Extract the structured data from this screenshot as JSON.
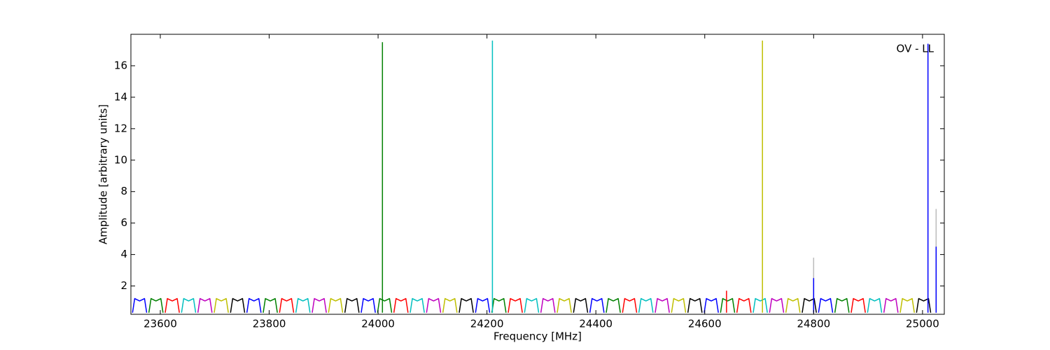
{
  "chart_data": {
    "type": "line",
    "annotation": "OV - LL",
    "xlabel": "Frequency [MHz]",
    "ylabel": "Amplitude [arbitrary units]",
    "xlim": [
      23546,
      25040
    ],
    "xticks": [
      23600,
      23800,
      24000,
      24200,
      24400,
      24600,
      24800,
      25000
    ],
    "ylim": [
      0.2,
      18
    ],
    "yticks": [
      2,
      4,
      6,
      8,
      10,
      12,
      14,
      16
    ],
    "grid": false,
    "series": [
      {
        "color": "#bbbbbb",
        "x": [
          24800,
          24800,
          null,
          25025,
          25025
        ],
        "values": [
          0.3,
          3.8,
          null,
          0.3,
          6.9
        ]
      },
      {
        "color": "#0000ff",
        "x": [
          23549,
          23553,
          23562,
          23571,
          23575,
          null,
          23759,
          23763,
          23772,
          23781,
          23785,
          null,
          23969,
          23973,
          23982,
          23991,
          23995,
          null,
          24179,
          24183,
          24192,
          24201,
          24205,
          null,
          24389,
          24393,
          24402,
          24411,
          24415,
          null,
          24599,
          24603,
          24612,
          24621,
          24625,
          null,
          24809,
          24813,
          24822,
          24831,
          24835
        ],
        "values": [
          0.3,
          1.2,
          1.05,
          1.2,
          0.3,
          null,
          0.3,
          1.2,
          1.05,
          1.2,
          0.3,
          null,
          0.3,
          1.2,
          1.05,
          1.2,
          0.3,
          null,
          0.3,
          1.2,
          1.05,
          1.2,
          0.3,
          null,
          0.3,
          1.2,
          1.05,
          1.2,
          0.3,
          null,
          0.3,
          1.2,
          1.05,
          1.2,
          0.3,
          null,
          0.3,
          1.2,
          1.05,
          1.2,
          0.3
        ]
      },
      {
        "color": "#008000",
        "x": [
          23579,
          23583,
          23592,
          23601,
          23605,
          null,
          23789,
          23793,
          23802,
          23811,
          23815,
          null,
          23999,
          24003,
          24012,
          24021,
          24025,
          null,
          24209,
          24213,
          24222,
          24231,
          24235,
          null,
          24419,
          24423,
          24432,
          24441,
          24445,
          null,
          24629,
          24633,
          24642,
          24651,
          24655,
          null,
          24839,
          24843,
          24852,
          24861,
          24865
        ],
        "values": [
          0.3,
          1.2,
          1.05,
          1.2,
          0.3,
          null,
          0.3,
          1.2,
          1.05,
          1.2,
          0.3,
          null,
          0.3,
          1.2,
          1.05,
          1.2,
          0.3,
          null,
          0.3,
          1.2,
          1.05,
          1.2,
          0.3,
          null,
          0.3,
          1.2,
          1.05,
          1.2,
          0.3,
          null,
          0.3,
          1.2,
          1.05,
          1.2,
          0.3,
          null,
          0.3,
          1.2,
          1.05,
          1.2,
          0.3
        ]
      },
      {
        "color": "#ff0000",
        "x": [
          23609,
          23613,
          23622,
          23631,
          23635,
          null,
          23819,
          23823,
          23832,
          23841,
          23845,
          null,
          24029,
          24033,
          24042,
          24051,
          24055,
          null,
          24239,
          24243,
          24252,
          24261,
          24265,
          null,
          24449,
          24453,
          24462,
          24471,
          24475,
          null,
          24659,
          24663,
          24672,
          24681,
          24685,
          null,
          24869,
          24873,
          24882,
          24891,
          24895
        ],
        "values": [
          0.3,
          1.2,
          1.05,
          1.2,
          0.3,
          null,
          0.3,
          1.2,
          1.05,
          1.2,
          0.3,
          null,
          0.3,
          1.2,
          1.05,
          1.2,
          0.3,
          null,
          0.3,
          1.2,
          1.05,
          1.2,
          0.3,
          null,
          0.3,
          1.2,
          1.05,
          1.2,
          0.3,
          null,
          0.3,
          1.2,
          1.05,
          1.2,
          0.3,
          null,
          0.3,
          1.2,
          1.05,
          1.2,
          0.3
        ]
      },
      {
        "color": "#00bfbf",
        "x": [
          23639,
          23643,
          23652,
          23661,
          23665,
          null,
          23849,
          23853,
          23862,
          23871,
          23875,
          null,
          24059,
          24063,
          24072,
          24081,
          24085,
          null,
          24269,
          24273,
          24282,
          24291,
          24295,
          null,
          24479,
          24483,
          24492,
          24501,
          24505,
          null,
          24689,
          24693,
          24702,
          24711,
          24715,
          null,
          24899,
          24903,
          24912,
          24921,
          24925
        ],
        "values": [
          0.3,
          1.2,
          1.05,
          1.2,
          0.3,
          null,
          0.3,
          1.2,
          1.05,
          1.2,
          0.3,
          null,
          0.3,
          1.2,
          1.05,
          1.2,
          0.3,
          null,
          0.3,
          1.2,
          1.05,
          1.2,
          0.3,
          null,
          0.3,
          1.2,
          1.05,
          1.2,
          0.3,
          null,
          0.3,
          1.2,
          1.05,
          1.2,
          0.3,
          null,
          0.3,
          1.2,
          1.05,
          1.2,
          0.3
        ]
      },
      {
        "color": "#bf00bf",
        "x": [
          23669,
          23673,
          23682,
          23691,
          23695,
          null,
          23879,
          23883,
          23892,
          23901,
          23905,
          null,
          24089,
          24093,
          24102,
          24111,
          24115,
          null,
          24299,
          24303,
          24312,
          24321,
          24325,
          null,
          24509,
          24513,
          24522,
          24531,
          24535,
          null,
          24719,
          24723,
          24732,
          24741,
          24745,
          null,
          24929,
          24933,
          24942,
          24951,
          24955
        ],
        "values": [
          0.3,
          1.2,
          1.05,
          1.2,
          0.3,
          null,
          0.3,
          1.2,
          1.05,
          1.2,
          0.3,
          null,
          0.3,
          1.2,
          1.05,
          1.2,
          0.3,
          null,
          0.3,
          1.2,
          1.05,
          1.2,
          0.3,
          null,
          0.3,
          1.2,
          1.05,
          1.2,
          0.3,
          null,
          0.3,
          1.2,
          1.05,
          1.2,
          0.3,
          null,
          0.3,
          1.2,
          1.05,
          1.2,
          0.3
        ]
      },
      {
        "color": "#bfbf00",
        "x": [
          23699,
          23703,
          23712,
          23721,
          23725,
          null,
          23909,
          23913,
          23922,
          23931,
          23935,
          null,
          24119,
          24123,
          24132,
          24141,
          24145,
          null,
          24329,
          24333,
          24342,
          24351,
          24355,
          null,
          24539,
          24543,
          24552,
          24561,
          24565,
          null,
          24749,
          24753,
          24762,
          24771,
          24775,
          null,
          24959,
          24963,
          24972,
          24981,
          24985
        ],
        "values": [
          0.3,
          1.2,
          1.05,
          1.2,
          0.3,
          null,
          0.3,
          1.2,
          1.05,
          1.2,
          0.3,
          null,
          0.3,
          1.2,
          1.05,
          1.2,
          0.3,
          null,
          0.3,
          1.2,
          1.05,
          1.2,
          0.3,
          null,
          0.3,
          1.2,
          1.05,
          1.2,
          0.3,
          null,
          0.3,
          1.2,
          1.05,
          1.2,
          0.3,
          null,
          0.3,
          1.2,
          1.05,
          1.2,
          0.3
        ]
      },
      {
        "color": "#000000",
        "x": [
          23729,
          23733,
          23742,
          23751,
          23755,
          null,
          23939,
          23943,
          23952,
          23961,
          23965,
          null,
          24149,
          24153,
          24162,
          24171,
          24175,
          null,
          24359,
          24363,
          24372,
          24381,
          24385,
          null,
          24569,
          24573,
          24582,
          24591,
          24595,
          null,
          24779,
          24783,
          24792,
          24801,
          24805,
          null,
          24989,
          24993,
          25002,
          25011,
          25015
        ],
        "values": [
          0.3,
          1.2,
          1.05,
          1.2,
          0.3,
          null,
          0.3,
          1.2,
          1.05,
          1.2,
          0.3,
          null,
          0.3,
          1.2,
          1.05,
          1.2,
          0.3,
          null,
          0.3,
          1.2,
          1.05,
          1.2,
          0.3,
          null,
          0.3,
          1.2,
          1.05,
          1.2,
          0.3,
          null,
          0.3,
          1.2,
          1.05,
          1.2,
          0.3,
          null,
          0.3,
          1.2,
          1.05,
          1.2,
          0.3
        ]
      },
      {
        "color": "#ff0000",
        "x": [
          24640,
          24640
        ],
        "values": [
          0.3,
          1.7
        ]
      },
      {
        "color": "#008000",
        "x": [
          24008,
          24008
        ],
        "values": [
          0.3,
          17.5
        ]
      },
      {
        "color": "#00bfbf",
        "x": [
          24210,
          24210
        ],
        "values": [
          0.3,
          17.6
        ]
      },
      {
        "color": "#bfbf00",
        "x": [
          24706,
          24706
        ],
        "values": [
          0.3,
          17.6
        ]
      },
      {
        "color": "#0000ff",
        "x": [
          24800,
          24800,
          null,
          25010,
          25010,
          null,
          25025,
          25025
        ],
        "values": [
          0.3,
          2.5,
          null,
          0.3,
          17.4,
          null,
          0.3,
          4.5
        ]
      }
    ]
  }
}
